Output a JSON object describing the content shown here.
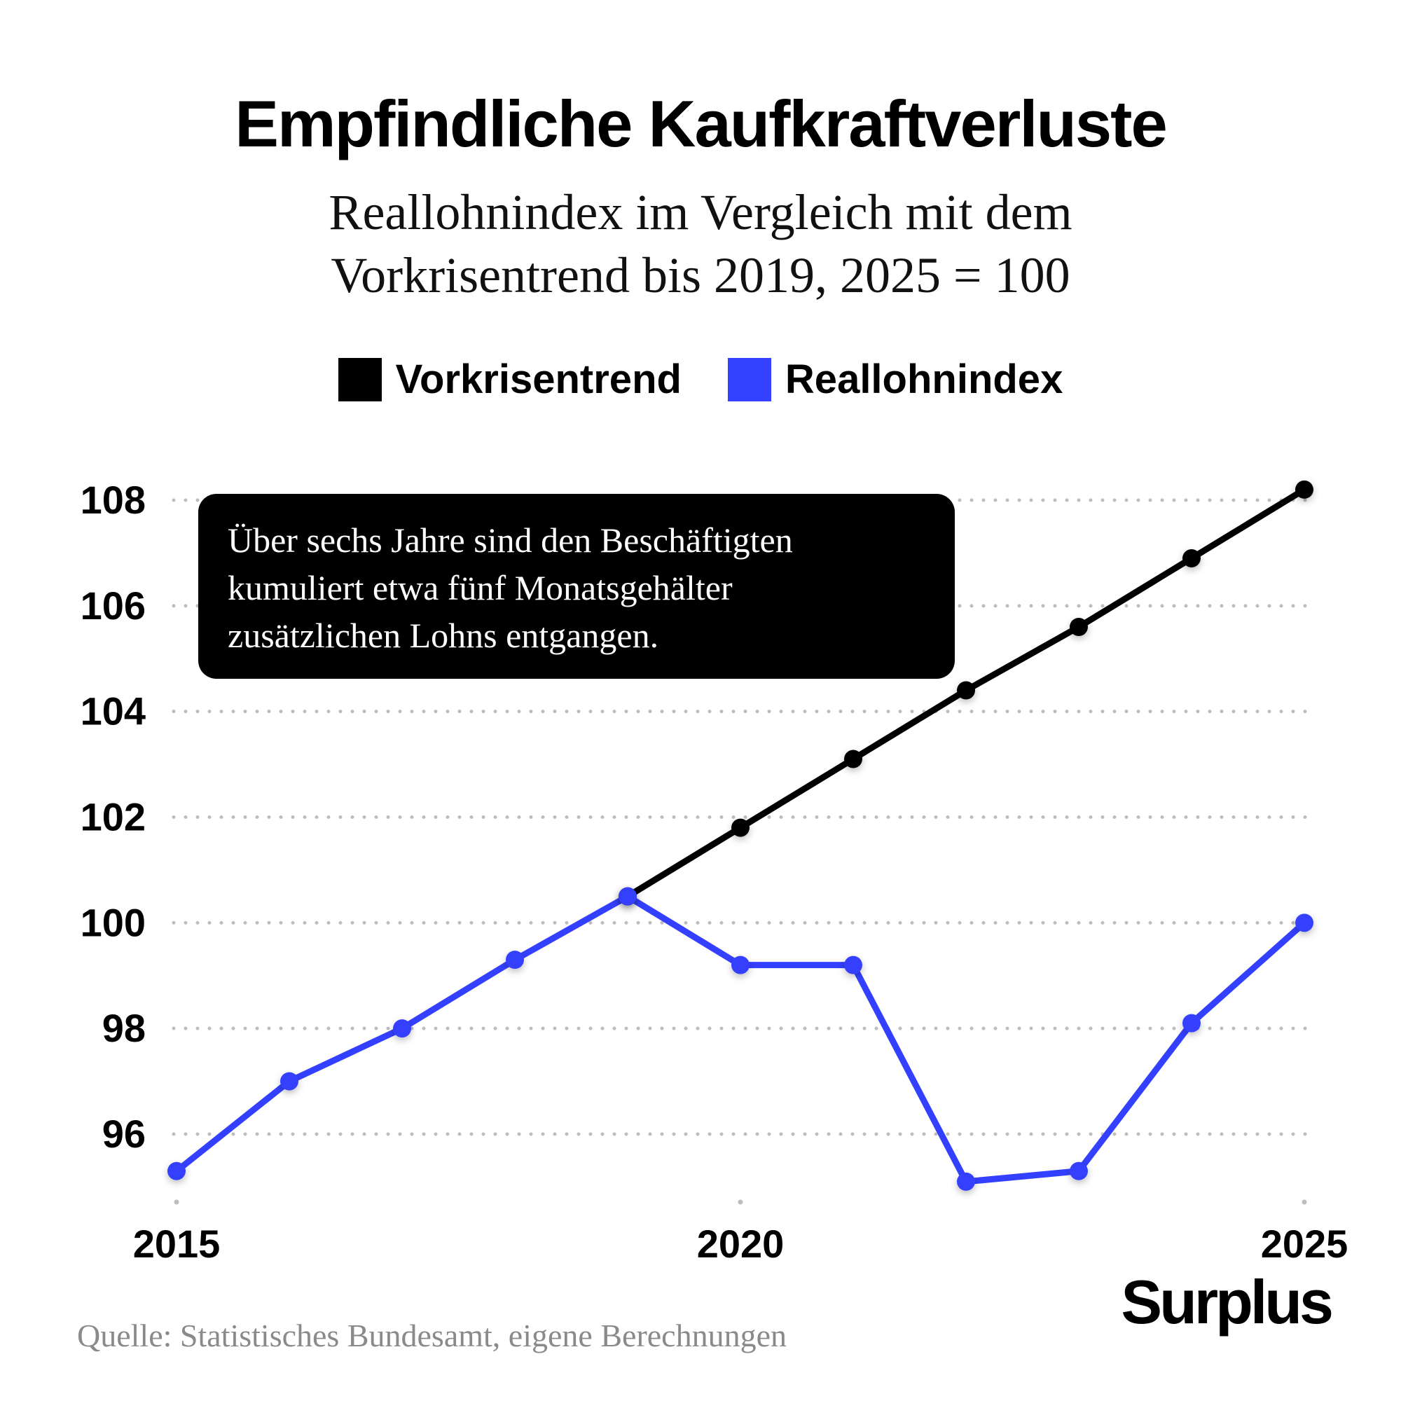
{
  "header": {
    "title": "Empfindliche Kaufkraftverluste",
    "subtitle_line1": "Reallohnindex im Vergleich mit dem",
    "subtitle_line2": "Vorkrisentrend bis 2019, 2025 = 100"
  },
  "legend": {
    "items": [
      {
        "label": "Vorkrisentrend",
        "color": "#000000"
      },
      {
        "label": "Reallohnindex",
        "color": "#3440ff"
      }
    ]
  },
  "annotation": {
    "line1": "Über sechs Jahre sind den Beschäftigten",
    "line2": "kumuliert etwa fünf Monatsgehälter",
    "line3": "zusätzlichen Lohns entgangen."
  },
  "footer": {
    "brand": "Surplus",
    "source": "Quelle: Statistisches Bundesamt, eigene Berechnungen"
  },
  "chart_data": {
    "type": "line",
    "title": "Empfindliche Kaufkraftverluste",
    "subtitle": "Reallohnindex im Vergleich mit dem Vorkrisentrend bis 2019, 2025 = 100",
    "x": [
      2015,
      2016,
      2017,
      2018,
      2019,
      2020,
      2021,
      2022,
      2023,
      2024,
      2025
    ],
    "x_ticks": [
      2015,
      2020,
      2025
    ],
    "x_tick_labels": [
      "2015",
      "2020",
      "2025"
    ],
    "ylim": [
      94.7,
      108.6
    ],
    "y_ticks": [
      96,
      98,
      100,
      102,
      104,
      106,
      108
    ],
    "y_tick_labels": [
      "96",
      "98",
      "100",
      "102",
      "104",
      "106",
      "108"
    ],
    "grid": "horizontal dotted",
    "legend_position": "top-center",
    "series": [
      {
        "name": "Vorkrisentrend",
        "color": "#000000",
        "x": [
          2019,
          2020,
          2021,
          2022,
          2023,
          2024,
          2025
        ],
        "values": [
          100.5,
          101.8,
          103.1,
          104.4,
          105.6,
          106.9,
          108.2
        ]
      },
      {
        "name": "Reallohnindex",
        "color": "#3440ff",
        "x": [
          2015,
          2016,
          2017,
          2018,
          2019,
          2020,
          2021,
          2022,
          2023,
          2024,
          2025
        ],
        "values": [
          95.3,
          97.0,
          98.0,
          99.3,
          100.5,
          99.2,
          99.2,
          95.1,
          95.3,
          98.1,
          100.0
        ]
      }
    ]
  }
}
